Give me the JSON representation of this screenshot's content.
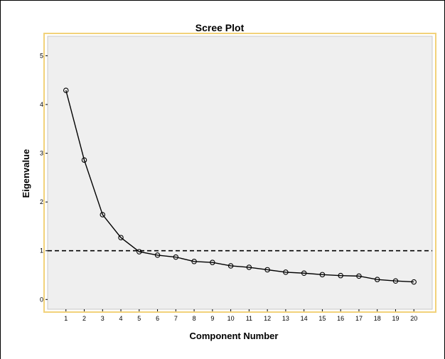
{
  "chart_data": {
    "type": "line",
    "title": "Scree Plot",
    "xlabel": "Component Number",
    "ylabel": "Eigenvalue",
    "x": [
      1,
      2,
      3,
      4,
      5,
      6,
      7,
      8,
      9,
      10,
      11,
      12,
      13,
      14,
      15,
      16,
      17,
      18,
      19,
      20
    ],
    "values": [
      4.29,
      2.86,
      1.74,
      1.27,
      0.98,
      0.91,
      0.87,
      0.78,
      0.76,
      0.69,
      0.66,
      0.61,
      0.56,
      0.54,
      0.51,
      0.49,
      0.48,
      0.41,
      0.38,
      0.36
    ],
    "xlim": [
      0,
      21
    ],
    "ylim": [
      -0.2,
      5.4
    ],
    "xticks": [
      "1",
      "2",
      "3",
      "4",
      "5",
      "6",
      "7",
      "8",
      "9",
      "10",
      "11",
      "12",
      "13",
      "14",
      "15",
      "16",
      "17",
      "18",
      "19",
      "20"
    ],
    "yticks": [
      "0",
      "1",
      "2",
      "3",
      "4",
      "5"
    ],
    "reference_line": {
      "y": 1,
      "style": "dashed"
    },
    "grid": false,
    "legend": "none",
    "colors": {
      "plot_background": "#efefef",
      "frame_border": "#f2d27a",
      "line": "#000000",
      "marker_stroke": "#000000"
    }
  }
}
